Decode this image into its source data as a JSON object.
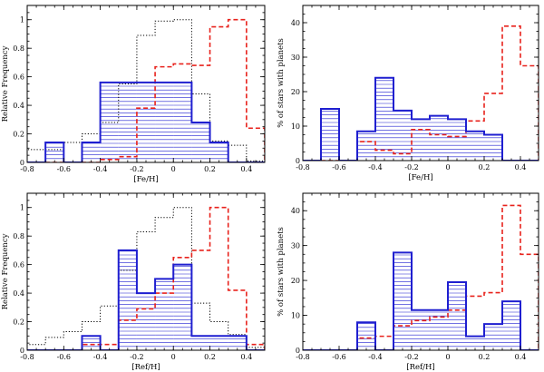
{
  "chart_data": [
    {
      "type": "histogram",
      "panel": "top-left",
      "xlabel": "[Fe/H]",
      "ylabel": "Relative Frequency",
      "xlim": [
        -0.8,
        0.5
      ],
      "ylim": [
        0,
        1.1
      ],
      "xticks": [
        -0.8,
        -0.6,
        -0.4,
        -0.2,
        0,
        0.2,
        0.4
      ],
      "xtick_labels": [
        "-0.8",
        "-0.6",
        "-0.4",
        "-0.2",
        "0",
        "0.2",
        "0.4"
      ],
      "yticks": [
        0,
        0.2,
        0.4,
        0.6,
        0.8,
        1.0
      ],
      "ytick_labels": [
        "0",
        "0.2",
        "0.4",
        "0.6",
        "0.8",
        "1"
      ],
      "bin_edges": [
        -0.9,
        -0.8,
        -0.7,
        -0.6,
        -0.5,
        -0.4,
        -0.3,
        -0.2,
        -0.1,
        0,
        0.1,
        0.2,
        0.3,
        0.4,
        0.5,
        0.6
      ],
      "series": [
        {
          "name": "hatched",
          "style": "solid-blue-hatched",
          "values": [
            0,
            0,
            0.14,
            0,
            0.14,
            0.56,
            0.56,
            0.56,
            0.56,
            0.56,
            0.28,
            0.14,
            0,
            0,
            0
          ]
        },
        {
          "name": "red-dashed",
          "style": "dashed-red",
          "values": [
            0,
            0,
            0,
            0,
            0,
            0.02,
            0.04,
            0.38,
            0.67,
            0.69,
            0.68,
            0.95,
            1.0,
            0.24,
            0.01
          ]
        },
        {
          "name": "dotted",
          "style": "dotted-black",
          "values": [
            0,
            0.09,
            0.09,
            0.14,
            0.2,
            0.28,
            0.55,
            0.89,
            0.99,
            1.0,
            0.48,
            0.15,
            0.12,
            0.01,
            0
          ]
        }
      ]
    },
    {
      "type": "histogram",
      "panel": "top-right",
      "xlabel": "[Fe/H]",
      "ylabel": "% of stars with planets",
      "xlim": [
        -0.8,
        0.5
      ],
      "ylim": [
        0,
        45
      ],
      "xticks": [
        -0.8,
        -0.6,
        -0.4,
        -0.2,
        0,
        0.2,
        0.4
      ],
      "xtick_labels": [
        "-0.8",
        "-0.6",
        "-0.4",
        "-0.2",
        "0",
        "0.2",
        "0.4"
      ],
      "yticks": [
        0,
        10,
        20,
        30,
        40
      ],
      "ytick_labels": [
        "0",
        "10",
        "20",
        "30",
        "40"
      ],
      "bin_edges": [
        -0.9,
        -0.8,
        -0.7,
        -0.6,
        -0.5,
        -0.4,
        -0.3,
        -0.2,
        -0.1,
        0,
        0.1,
        0.2,
        0.3,
        0.4,
        0.5,
        0.6
      ],
      "series": [
        {
          "name": "hatched",
          "style": "solid-blue-hatched",
          "values": [
            0,
            0,
            15,
            0,
            8.5,
            24,
            14.5,
            12,
            13,
            12,
            8.5,
            7.5,
            0,
            0,
            0
          ]
        },
        {
          "name": "red-dashed",
          "style": "dashed-red",
          "values": [
            0,
            0,
            0,
            0,
            5.5,
            3,
            2,
            9,
            7.5,
            7,
            11.5,
            19.5,
            39,
            27.5,
            0
          ]
        }
      ]
    },
    {
      "type": "histogram",
      "panel": "bottom-left",
      "xlabel": "[Ref/H]",
      "ylabel": "Relative Frequency",
      "xlim": [
        -0.8,
        0.5
      ],
      "ylim": [
        0,
        1.1
      ],
      "xticks": [
        -0.8,
        -0.6,
        -0.4,
        -0.2,
        0,
        0.2,
        0.4
      ],
      "xtick_labels": [
        "-0.8",
        "-0.6",
        "-0.4",
        "-0.2",
        "0",
        "0.2",
        "0.4"
      ],
      "yticks": [
        0,
        0.2,
        0.4,
        0.6,
        0.8,
        1.0
      ],
      "ytick_labels": [
        "0",
        "0.2",
        "0.4",
        "0.6",
        "0.8",
        "1"
      ],
      "bin_edges": [
        -0.9,
        -0.8,
        -0.7,
        -0.6,
        -0.5,
        -0.4,
        -0.3,
        -0.2,
        -0.1,
        0,
        0.1,
        0.2,
        0.3,
        0.4,
        0.5,
        0.6
      ],
      "series": [
        {
          "name": "hatched",
          "style": "solid-blue-hatched",
          "values": [
            0,
            0,
            0,
            0,
            0.1,
            0,
            0.7,
            0.4,
            0.5,
            0.6,
            0.1,
            0.1,
            0.1,
            0,
            0
          ]
        },
        {
          "name": "red-dashed",
          "style": "dashed-red",
          "values": [
            0,
            0,
            0,
            0,
            0.04,
            0.04,
            0.21,
            0.29,
            0.4,
            0.65,
            0.7,
            1.0,
            0.42,
            0.04,
            0
          ]
        },
        {
          "name": "dotted",
          "style": "dotted-black",
          "values": [
            0,
            0.04,
            0.09,
            0.13,
            0.2,
            0.31,
            0.56,
            0.83,
            0.93,
            1.0,
            0.33,
            0.2,
            0.11,
            0.02,
            0
          ]
        }
      ]
    },
    {
      "type": "histogram",
      "panel": "bottom-right",
      "xlabel": "[Ref/H]",
      "ylabel": "% of stars with planets",
      "xlim": [
        -0.8,
        0.5
      ],
      "ylim": [
        0,
        45
      ],
      "xticks": [
        -0.8,
        -0.6,
        -0.4,
        -0.2,
        0,
        0.2,
        0.4
      ],
      "xtick_labels": [
        "-0.8",
        "-0.6",
        "-0.4",
        "-0.2",
        "0",
        "0.2",
        "0.4"
      ],
      "yticks": [
        0,
        10,
        20,
        30,
        40
      ],
      "ytick_labels": [
        "0",
        "10",
        "20",
        "30",
        "40"
      ],
      "bin_edges": [
        -0.9,
        -0.8,
        -0.7,
        -0.6,
        -0.5,
        -0.4,
        -0.3,
        -0.2,
        -0.1,
        0,
        0.1,
        0.2,
        0.3,
        0.4,
        0.5,
        0.6
      ],
      "series": [
        {
          "name": "hatched",
          "style": "solid-blue-hatched",
          "values": [
            0,
            0,
            0,
            0,
            8,
            0,
            28,
            11.5,
            11.5,
            19.5,
            4,
            7.5,
            14,
            0,
            0
          ]
        },
        {
          "name": "red-dashed",
          "style": "dashed-red",
          "values": [
            0,
            0,
            0,
            0,
            3.5,
            4,
            7,
            8.5,
            9.5,
            11.5,
            15.5,
            16.5,
            41.5,
            27.5,
            0
          ]
        }
      ]
    }
  ]
}
